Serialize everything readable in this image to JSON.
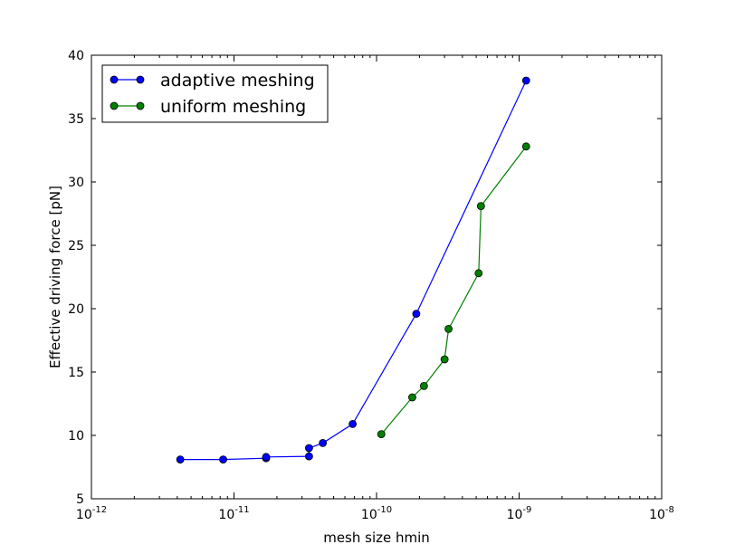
{
  "chart_data": {
    "type": "line",
    "title": "",
    "xlabel": "mesh size hmin",
    "ylabel": "Effective driving force [pN]",
    "xscale": "log",
    "xlim": [
      1e-12,
      1e-08
    ],
    "ylim": [
      5,
      40
    ],
    "xticks": [
      {
        "value": 1e-12,
        "base": "10",
        "exp": "-12"
      },
      {
        "value": 1e-11,
        "base": "10",
        "exp": "-11"
      },
      {
        "value": 1e-10,
        "base": "10",
        "exp": "-10"
      },
      {
        "value": 1e-09,
        "base": "10",
        "exp": "-9"
      },
      {
        "value": 1e-08,
        "base": "10",
        "exp": "-8"
      }
    ],
    "yticks": [
      {
        "value": 5,
        "label": "5"
      },
      {
        "value": 10,
        "label": "10"
      },
      {
        "value": 15,
        "label": "15"
      },
      {
        "value": 20,
        "label": "20"
      },
      {
        "value": 25,
        "label": "25"
      },
      {
        "value": 30,
        "label": "30"
      },
      {
        "value": 35,
        "label": "35"
      },
      {
        "value": 40,
        "label": "40"
      }
    ],
    "grid": false,
    "legend": "top-left",
    "series": [
      {
        "name": "adaptive meshing",
        "color": "#0000ff",
        "marker": "circle",
        "x": [
          4.2e-12,
          8.4e-12,
          1.68e-11,
          1.68e-11,
          3.36e-11,
          3.36e-11,
          4.2e-11,
          6.8e-11,
          1.9e-10,
          1.12e-09
        ],
        "y": [
          8.1,
          8.1,
          8.2,
          8.3,
          8.35,
          9.0,
          9.4,
          10.9,
          19.6,
          38.0
        ]
      },
      {
        "name": "uniform meshing",
        "color": "#008000",
        "marker": "circle",
        "x": [
          1.08e-10,
          1.78e-10,
          2.15e-10,
          3e-10,
          3.2e-10,
          5.2e-10,
          5.4e-10,
          1.12e-09
        ],
        "y": [
          10.1,
          13.0,
          13.9,
          16.0,
          18.4,
          22.8,
          28.1,
          32.8
        ]
      }
    ]
  }
}
